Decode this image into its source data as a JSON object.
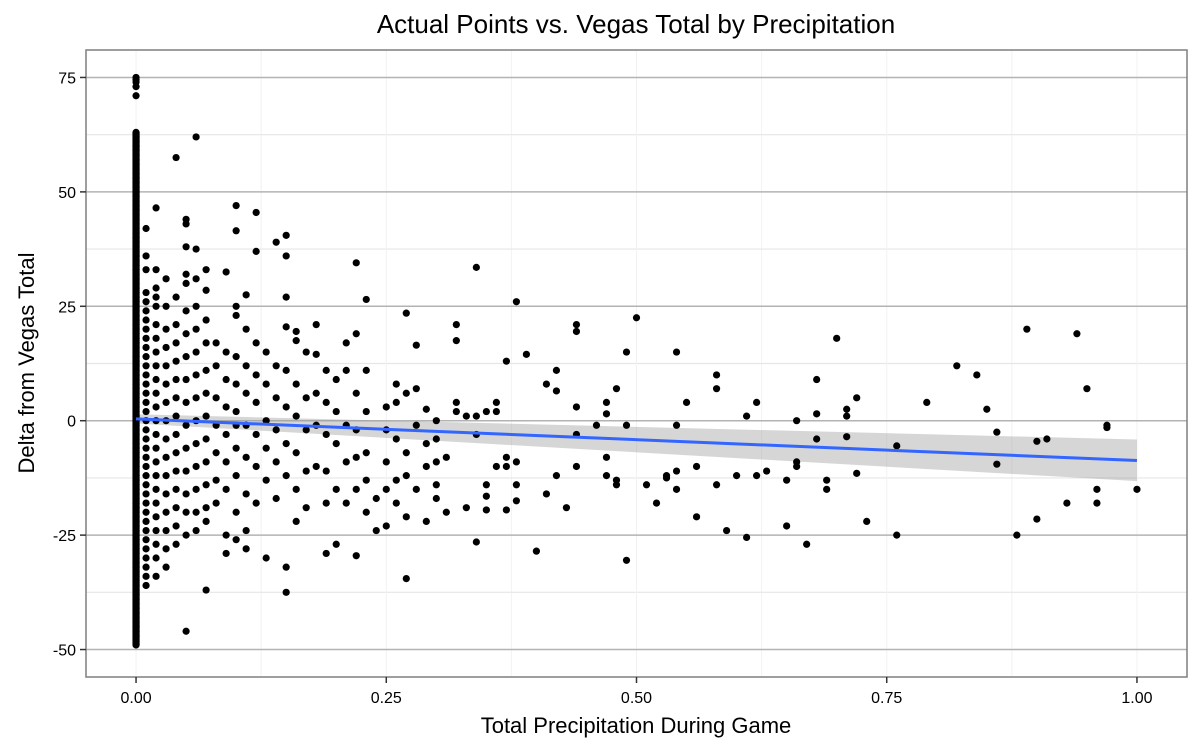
{
  "chart_data": {
    "type": "scatter",
    "title": "Actual Points vs. Vegas Total by Precipitation",
    "xlabel": "Total Precipitation During Game",
    "ylabel": "Delta from Vegas Total",
    "xlim": [
      -0.05,
      1.05
    ],
    "ylim": [
      -56,
      81
    ],
    "x_ticks": [
      0,
      0.25,
      0.5,
      0.75,
      1.0
    ],
    "x_tick_labels": [
      "0.00",
      "0.25",
      "0.50",
      "0.75",
      "1.00"
    ],
    "y_ticks": [
      -50,
      -25,
      0,
      25,
      50,
      75
    ],
    "y_tick_labels": [
      "-50",
      "-25",
      "0",
      "25",
      "50",
      "75"
    ],
    "grid": true,
    "point_color": "#000000",
    "fit": {
      "method": "linear",
      "color": "#3366FF",
      "ribbon_color": "#999999",
      "x": [
        0,
        1
      ],
      "y": [
        0.4,
        -8.7
      ],
      "ci_lower": [
        -0.6,
        -13.2
      ],
      "ci_upper": [
        1.4,
        -4.1
      ]
    },
    "zero_column": {
      "x": 0,
      "values": [
        75,
        74.5,
        74,
        73,
        71,
        63,
        62,
        61,
        60,
        59,
        58,
        57,
        56,
        55,
        54,
        53,
        52,
        51,
        50,
        49,
        48,
        47,
        46,
        45,
        44,
        43,
        42,
        41,
        40,
        39,
        38,
        37,
        36,
        35,
        34,
        33,
        32,
        31,
        30,
        29,
        28,
        27,
        26,
        25,
        24,
        23,
        22,
        21,
        20,
        19,
        18,
        17,
        16,
        15,
        14,
        13,
        12,
        11,
        10,
        9,
        8,
        7,
        6,
        5,
        4,
        3,
        2,
        1,
        0,
        -1,
        -2,
        -3,
        -4,
        -5,
        -6,
        -7,
        -8,
        -9,
        -10,
        -11,
        -12,
        -13,
        -14,
        -15,
        -16,
        -17,
        -18,
        -19,
        -20,
        -21,
        -22,
        -23,
        -24,
        -25,
        -26,
        -27,
        -28,
        -29,
        -30,
        -31,
        -32,
        -33,
        -34,
        -35,
        -36,
        -37,
        -38,
        -39,
        -40,
        -41,
        -42,
        -43,
        -44,
        -45,
        -46,
        -47,
        -49
      ]
    },
    "points": [
      [
        0.01,
        42
      ],
      [
        0.01,
        36
      ],
      [
        0.01,
        33
      ],
      [
        0.01,
        28
      ],
      [
        0.01,
        26
      ],
      [
        0.01,
        24
      ],
      [
        0.01,
        22
      ],
      [
        0.01,
        20
      ],
      [
        0.01,
        18
      ],
      [
        0.01,
        16
      ],
      [
        0.01,
        14
      ],
      [
        0.01,
        12
      ],
      [
        0.01,
        10
      ],
      [
        0.01,
        8
      ],
      [
        0.01,
        6
      ],
      [
        0.01,
        4
      ],
      [
        0.01,
        2
      ],
      [
        0.01,
        0
      ],
      [
        0.01,
        -2
      ],
      [
        0.01,
        -4
      ],
      [
        0.01,
        -6
      ],
      [
        0.01,
        -8
      ],
      [
        0.01,
        -10
      ],
      [
        0.01,
        -12
      ],
      [
        0.01,
        -14
      ],
      [
        0.01,
        -16
      ],
      [
        0.01,
        -18
      ],
      [
        0.01,
        -20
      ],
      [
        0.01,
        -22
      ],
      [
        0.01,
        -24
      ],
      [
        0.01,
        -26
      ],
      [
        0.01,
        -28
      ],
      [
        0.01,
        -30
      ],
      [
        0.01,
        -32
      ],
      [
        0.01,
        -34
      ],
      [
        0.01,
        -36
      ],
      [
        0.02,
        46.5
      ],
      [
        0.02,
        33
      ],
      [
        0.02,
        29
      ],
      [
        0.02,
        27
      ],
      [
        0.02,
        25
      ],
      [
        0.02,
        21
      ],
      [
        0.02,
        18
      ],
      [
        0.02,
        15
      ],
      [
        0.02,
        12
      ],
      [
        0.02,
        9
      ],
      [
        0.02,
        6
      ],
      [
        0.02,
        3
      ],
      [
        0.02,
        0
      ],
      [
        0.02,
        -3
      ],
      [
        0.02,
        -6
      ],
      [
        0.02,
        -9
      ],
      [
        0.02,
        -12
      ],
      [
        0.02,
        -15
      ],
      [
        0.02,
        -18
      ],
      [
        0.02,
        -21
      ],
      [
        0.02,
        -24
      ],
      [
        0.02,
        -27
      ],
      [
        0.02,
        -30
      ],
      [
        0.02,
        -34
      ],
      [
        0.03,
        31
      ],
      [
        0.03,
        25
      ],
      [
        0.03,
        20
      ],
      [
        0.03,
        16
      ],
      [
        0.03,
        12
      ],
      [
        0.03,
        8
      ],
      [
        0.03,
        4
      ],
      [
        0.03,
        0
      ],
      [
        0.03,
        -4
      ],
      [
        0.03,
        -8
      ],
      [
        0.03,
        -12
      ],
      [
        0.03,
        -16
      ],
      [
        0.03,
        -20
      ],
      [
        0.03,
        -24
      ],
      [
        0.03,
        -28
      ],
      [
        0.03,
        -32
      ],
      [
        0.04,
        57.5
      ],
      [
        0.04,
        27
      ],
      [
        0.04,
        21
      ],
      [
        0.04,
        17
      ],
      [
        0.04,
        13
      ],
      [
        0.04,
        9
      ],
      [
        0.04,
        5
      ],
      [
        0.04,
        1
      ],
      [
        0.04,
        -3
      ],
      [
        0.04,
        -7
      ],
      [
        0.04,
        -11
      ],
      [
        0.04,
        -15
      ],
      [
        0.04,
        -19
      ],
      [
        0.04,
        -23
      ],
      [
        0.04,
        -27
      ],
      [
        0.05,
        44
      ],
      [
        0.05,
        43
      ],
      [
        0.05,
        38
      ],
      [
        0.05,
        32
      ],
      [
        0.05,
        30
      ],
      [
        0.05,
        24
      ],
      [
        0.05,
        19
      ],
      [
        0.05,
        14
      ],
      [
        0.05,
        9
      ],
      [
        0.05,
        4
      ],
      [
        0.05,
        -1
      ],
      [
        0.05,
        -6
      ],
      [
        0.05,
        -11
      ],
      [
        0.05,
        -16
      ],
      [
        0.05,
        -20
      ],
      [
        0.05,
        -25
      ],
      [
        0.05,
        -46
      ],
      [
        0.06,
        62
      ],
      [
        0.06,
        37.5
      ],
      [
        0.06,
        31
      ],
      [
        0.06,
        25
      ],
      [
        0.06,
        20
      ],
      [
        0.06,
        15
      ],
      [
        0.06,
        10
      ],
      [
        0.06,
        5
      ],
      [
        0.06,
        0
      ],
      [
        0.06,
        -5
      ],
      [
        0.06,
        -10
      ],
      [
        0.06,
        -15
      ],
      [
        0.06,
        -20
      ],
      [
        0.06,
        -24
      ],
      [
        0.07,
        33
      ],
      [
        0.07,
        28.5
      ],
      [
        0.07,
        22
      ],
      [
        0.07,
        17
      ],
      [
        0.07,
        11
      ],
      [
        0.07,
        6
      ],
      [
        0.07,
        1
      ],
      [
        0.07,
        -4
      ],
      [
        0.07,
        -9
      ],
      [
        0.07,
        -14
      ],
      [
        0.07,
        -19
      ],
      [
        0.07,
        -22
      ],
      [
        0.07,
        -37
      ],
      [
        0.08,
        17
      ],
      [
        0.08,
        12
      ],
      [
        0.08,
        5
      ],
      [
        0.08,
        -1
      ],
      [
        0.08,
        -7
      ],
      [
        0.08,
        -13
      ],
      [
        0.08,
        -18
      ],
      [
        0.09,
        32.5
      ],
      [
        0.09,
        15
      ],
      [
        0.09,
        9
      ],
      [
        0.09,
        3
      ],
      [
        0.09,
        -3
      ],
      [
        0.09,
        -9
      ],
      [
        0.09,
        -15
      ],
      [
        0.09,
        -25
      ],
      [
        0.09,
        -29
      ],
      [
        0.1,
        47
      ],
      [
        0.1,
        41.5
      ],
      [
        0.1,
        25
      ],
      [
        0.1,
        23
      ],
      [
        0.1,
        14
      ],
      [
        0.1,
        8
      ],
      [
        0.1,
        2
      ],
      [
        0.1,
        -1
      ],
      [
        0.1,
        -6
      ],
      [
        0.1,
        -12
      ],
      [
        0.1,
        -20
      ],
      [
        0.1,
        -26
      ],
      [
        0.11,
        27.5
      ],
      [
        0.11,
        20
      ],
      [
        0.11,
        12
      ],
      [
        0.11,
        6
      ],
      [
        0.11,
        -1
      ],
      [
        0.11,
        -8
      ],
      [
        0.11,
        -16
      ],
      [
        0.11,
        -24
      ],
      [
        0.11,
        -28
      ],
      [
        0.12,
        45.5
      ],
      [
        0.12,
        37
      ],
      [
        0.12,
        17
      ],
      [
        0.12,
        10
      ],
      [
        0.12,
        4
      ],
      [
        0.12,
        -3
      ],
      [
        0.12,
        -10
      ],
      [
        0.12,
        -18
      ],
      [
        0.13,
        15
      ],
      [
        0.13,
        8
      ],
      [
        0.13,
        0
      ],
      [
        0.13,
        -6
      ],
      [
        0.13,
        -13
      ],
      [
        0.13,
        -30
      ],
      [
        0.14,
        39
      ],
      [
        0.14,
        12
      ],
      [
        0.14,
        5
      ],
      [
        0.14,
        -2
      ],
      [
        0.14,
        -9
      ],
      [
        0.14,
        -17
      ],
      [
        0.15,
        40.5
      ],
      [
        0.15,
        36
      ],
      [
        0.15,
        27
      ],
      [
        0.15,
        20.5
      ],
      [
        0.15,
        11
      ],
      [
        0.15,
        3
      ],
      [
        0.15,
        -5
      ],
      [
        0.15,
        -12
      ],
      [
        0.15,
        -32
      ],
      [
        0.15,
        -37.5
      ],
      [
        0.16,
        19.5
      ],
      [
        0.16,
        17.5
      ],
      [
        0.16,
        8
      ],
      [
        0.16,
        1
      ],
      [
        0.16,
        -7
      ],
      [
        0.16,
        -15
      ],
      [
        0.16,
        -22
      ],
      [
        0.17,
        15
      ],
      [
        0.17,
        5
      ],
      [
        0.17,
        -2
      ],
      [
        0.17,
        -11
      ],
      [
        0.17,
        -19
      ],
      [
        0.18,
        21
      ],
      [
        0.18,
        14.5
      ],
      [
        0.18,
        6
      ],
      [
        0.18,
        -1
      ],
      [
        0.18,
        -10
      ],
      [
        0.19,
        11
      ],
      [
        0.19,
        4
      ],
      [
        0.19,
        -3
      ],
      [
        0.19,
        -11
      ],
      [
        0.19,
        -18
      ],
      [
        0.19,
        -29
      ],
      [
        0.2,
        9
      ],
      [
        0.2,
        2
      ],
      [
        0.2,
        -5
      ],
      [
        0.2,
        -15
      ],
      [
        0.2,
        -27
      ],
      [
        0.21,
        17
      ],
      [
        0.21,
        11
      ],
      [
        0.21,
        -1
      ],
      [
        0.21,
        -9
      ],
      [
        0.21,
        -18
      ],
      [
        0.22,
        34.5
      ],
      [
        0.22,
        19
      ],
      [
        0.22,
        6
      ],
      [
        0.22,
        -2
      ],
      [
        0.22,
        -8
      ],
      [
        0.22,
        -15
      ],
      [
        0.22,
        -29.5
      ],
      [
        0.23,
        26.5
      ],
      [
        0.23,
        11
      ],
      [
        0.23,
        2
      ],
      [
        0.23,
        -7
      ],
      [
        0.23,
        -13
      ],
      [
        0.23,
        -20
      ],
      [
        0.24,
        -17
      ],
      [
        0.24,
        -24
      ],
      [
        0.25,
        3
      ],
      [
        0.25,
        -2
      ],
      [
        0.25,
        -9
      ],
      [
        0.25,
        -15
      ],
      [
        0.25,
        -23
      ],
      [
        0.26,
        8
      ],
      [
        0.26,
        4
      ],
      [
        0.26,
        -4
      ],
      [
        0.26,
        -13
      ],
      [
        0.26,
        -18
      ],
      [
        0.27,
        23.5
      ],
      [
        0.27,
        6
      ],
      [
        0.27,
        -7
      ],
      [
        0.27,
        -12
      ],
      [
        0.27,
        -21
      ],
      [
        0.27,
        -34.5
      ],
      [
        0.28,
        16.5
      ],
      [
        0.28,
        7
      ],
      [
        0.28,
        -1
      ],
      [
        0.28,
        -15
      ],
      [
        0.29,
        2.5
      ],
      [
        0.29,
        -5
      ],
      [
        0.29,
        -10
      ],
      [
        0.29,
        -22
      ],
      [
        0.3,
        0
      ],
      [
        0.3,
        -4
      ],
      [
        0.3,
        -9
      ],
      [
        0.3,
        -14
      ],
      [
        0.3,
        -17
      ],
      [
        0.31,
        -8
      ],
      [
        0.31,
        -20
      ],
      [
        0.32,
        21
      ],
      [
        0.32,
        17.5
      ],
      [
        0.32,
        4
      ],
      [
        0.32,
        2
      ],
      [
        0.33,
        1
      ],
      [
        0.33,
        -19
      ],
      [
        0.34,
        33.5
      ],
      [
        0.34,
        1
      ],
      [
        0.34,
        -3
      ],
      [
        0.34,
        -26.5
      ],
      [
        0.35,
        2
      ],
      [
        0.35,
        -14
      ],
      [
        0.35,
        -16.5
      ],
      [
        0.35,
        -19.5
      ],
      [
        0.36,
        4
      ],
      [
        0.36,
        2
      ],
      [
        0.36,
        -10
      ],
      [
        0.37,
        13
      ],
      [
        0.37,
        -8
      ],
      [
        0.37,
        -10
      ],
      [
        0.37,
        -19.5
      ],
      [
        0.38,
        26
      ],
      [
        0.38,
        -9
      ],
      [
        0.38,
        -14
      ],
      [
        0.38,
        -17.5
      ],
      [
        0.39,
        14.5
      ],
      [
        0.4,
        -28.5
      ],
      [
        0.41,
        8
      ],
      [
        0.41,
        -16
      ],
      [
        0.42,
        11
      ],
      [
        0.42,
        6.5
      ],
      [
        0.42,
        -12
      ],
      [
        0.43,
        -19
      ],
      [
        0.44,
        21
      ],
      [
        0.44,
        19.5
      ],
      [
        0.44,
        3
      ],
      [
        0.44,
        -3
      ],
      [
        0.44,
        -10
      ],
      [
        0.46,
        -1
      ],
      [
        0.47,
        4
      ],
      [
        0.47,
        1.5
      ],
      [
        0.47,
        -8
      ],
      [
        0.47,
        -12
      ],
      [
        0.48,
        7
      ],
      [
        0.48,
        -13
      ],
      [
        0.48,
        -14
      ],
      [
        0.49,
        15
      ],
      [
        0.49,
        -1
      ],
      [
        0.49,
        -30.5
      ],
      [
        0.5,
        22.5
      ],
      [
        0.51,
        -14
      ],
      [
        0.52,
        -18
      ],
      [
        0.53,
        -12
      ],
      [
        0.53,
        -12.5
      ],
      [
        0.54,
        15
      ],
      [
        0.54,
        -1
      ],
      [
        0.54,
        -11
      ],
      [
        0.54,
        -15
      ],
      [
        0.55,
        4
      ],
      [
        0.56,
        -10
      ],
      [
        0.56,
        -21
      ],
      [
        0.58,
        10
      ],
      [
        0.58,
        7
      ],
      [
        0.58,
        -14
      ],
      [
        0.59,
        -24
      ],
      [
        0.6,
        -12
      ],
      [
        0.61,
        1
      ],
      [
        0.61,
        -25.5
      ],
      [
        0.62,
        4
      ],
      [
        0.62,
        -12
      ],
      [
        0.63,
        -11
      ],
      [
        0.65,
        -13
      ],
      [
        0.65,
        -23
      ],
      [
        0.66,
        0
      ],
      [
        0.66,
        -9
      ],
      [
        0.66,
        -10
      ],
      [
        0.67,
        -27
      ],
      [
        0.68,
        9
      ],
      [
        0.68,
        1.5
      ],
      [
        0.68,
        -4
      ],
      [
        0.69,
        -13
      ],
      [
        0.69,
        -15
      ],
      [
        0.7,
        18
      ],
      [
        0.71,
        2.5
      ],
      [
        0.71,
        1
      ],
      [
        0.71,
        -3.5
      ],
      [
        0.72,
        5
      ],
      [
        0.72,
        -11.5
      ],
      [
        0.73,
        -22
      ],
      [
        0.76,
        -5.5
      ],
      [
        0.76,
        -25
      ],
      [
        0.79,
        4
      ],
      [
        0.82,
        12
      ],
      [
        0.84,
        10
      ],
      [
        0.85,
        2.5
      ],
      [
        0.86,
        -2.5
      ],
      [
        0.86,
        -9.5
      ],
      [
        0.88,
        -25
      ],
      [
        0.89,
        20
      ],
      [
        0.9,
        -4.5
      ],
      [
        0.9,
        -21.5
      ],
      [
        0.91,
        -4
      ],
      [
        0.93,
        -18
      ],
      [
        0.94,
        19
      ],
      [
        0.95,
        7
      ],
      [
        0.96,
        -15
      ],
      [
        0.96,
        -18
      ],
      [
        0.97,
        -1
      ],
      [
        0.97,
        -1.5
      ],
      [
        1.0,
        -15
      ]
    ]
  }
}
